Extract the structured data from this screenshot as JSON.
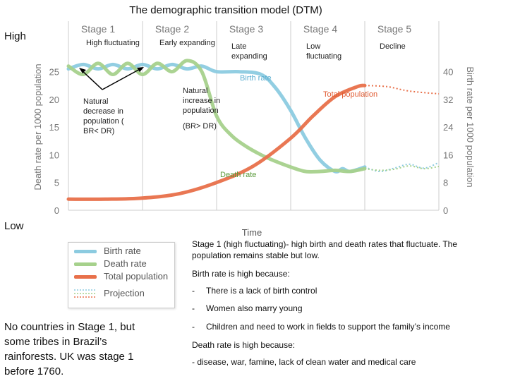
{
  "title": "The demographic transition model (DTM)",
  "side_labels": {
    "high": "High",
    "low": "Low"
  },
  "annotations": {
    "high_fluctuating": "High fluctuating",
    "early_expanding": "Early expanding",
    "late_expanding": "Late expanding",
    "low_fluctuating": "Low fluctuating",
    "decline": "Decline",
    "natural_decrease": "Natural decrease in population ( BR< DR)",
    "natural_increase": "Natural increase in population",
    "br_gt_dr": "(BR> DR)",
    "birth_rate": "Birth rate",
    "total_population": "Total population",
    "death_rate": "Death rate"
  },
  "legend": [
    {
      "label": "Birth rate",
      "color": "#8ccbe0"
    },
    {
      "label": "Death rate",
      "color": "#a6d18c"
    },
    {
      "label": "Total population",
      "color": "#e8704a"
    },
    {
      "label": "Projection",
      "color": "#9ab"
    }
  ],
  "text_block": {
    "stage1": "Stage 1 (high fluctuating)- high birth and death rates that fluctuate. The population remains stable but low.",
    "birth_high": "Birth rate is high because:",
    "reasons": [
      {
        "bullet": "-",
        "text": "There is a lack of birth control"
      },
      {
        "bullet": "-",
        "text": "Women also marry young"
      },
      {
        "bullet": "-",
        "text": "Children and need to work in fields to support the family’s income"
      }
    ],
    "death_high": "Death rate is high because:",
    "death_reasons": "- disease, war, famine, lack of clean water and medical care",
    "bottom_left": "No countries in Stage 1, but some tribes in Brazil’s rainforests. UK was stage 1 before 1760."
  },
  "chart_data": {
    "type": "line",
    "stages": [
      "Stage 1",
      "Stage 2",
      "Stage 3",
      "Stage 4",
      "Stage 5"
    ],
    "xlabel": "Time",
    "ylabel_left": "Death rate per 1000 population",
    "ylabel_right": "Birth rate per 1000 population",
    "left_ticks": [
      "0",
      "5",
      "10",
      "15",
      "20",
      "25"
    ],
    "right_ticks": [
      "0",
      "8",
      "16",
      "24",
      "32",
      "40"
    ],
    "ylim_left": [
      0,
      28
    ],
    "x_range": [
      0,
      5
    ],
    "series": [
      {
        "name": "Birth rate",
        "color": "#8ccbe0",
        "x": [
          0,
          0.2,
          0.4,
          0.6,
          0.8,
          1.0,
          1.2,
          1.4,
          1.6,
          1.8,
          2.0,
          2.3,
          2.6,
          2.8,
          3.0,
          3.2,
          3.4,
          3.6,
          3.7,
          3.8,
          4.0,
          4.2,
          4.4,
          4.6,
          4.8,
          5.0
        ],
        "y": [
          25.5,
          26.3,
          25.5,
          26.3,
          25.5,
          26.3,
          25.5,
          26.3,
          25.5,
          26,
          25,
          25,
          24.5,
          22,
          18,
          13,
          9,
          7,
          7.5,
          7,
          7.8,
          7,
          7.6,
          8.3,
          7.6,
          8.6
        ],
        "projection_from": 4.0
      },
      {
        "name": "Death rate",
        "color": "#a6d18c",
        "x": [
          0,
          0.2,
          0.4,
          0.6,
          0.8,
          1.0,
          1.2,
          1.4,
          1.6,
          1.8,
          2.0,
          2.2,
          2.4,
          2.6,
          2.8,
          3.0,
          3.2,
          3.4,
          3.6,
          3.8,
          4.0,
          4.2,
          4.4,
          4.6,
          4.8,
          5.0
        ],
        "y": [
          26,
          24.5,
          26.5,
          24.5,
          26.5,
          24.5,
          26.5,
          25,
          27,
          25,
          17,
          13.5,
          11.5,
          10,
          8.8,
          7.8,
          7,
          7,
          7.2,
          7,
          7.5,
          7.2,
          7.4,
          8,
          7.5,
          7.9
        ],
        "projection_from": 4.0
      },
      {
        "name": "Total population",
        "color": "#e8704a",
        "x": [
          0,
          0.5,
          1.0,
          1.5,
          2.0,
          2.5,
          3.0,
          3.3,
          3.6,
          3.9,
          4.0,
          4.3,
          4.6,
          5.0
        ],
        "y": [
          2,
          2,
          2.2,
          3,
          5,
          8,
          13,
          17,
          20.5,
          22.3,
          22.5,
          22.3,
          21.5,
          21
        ],
        "projection_from": 4.0
      }
    ]
  }
}
